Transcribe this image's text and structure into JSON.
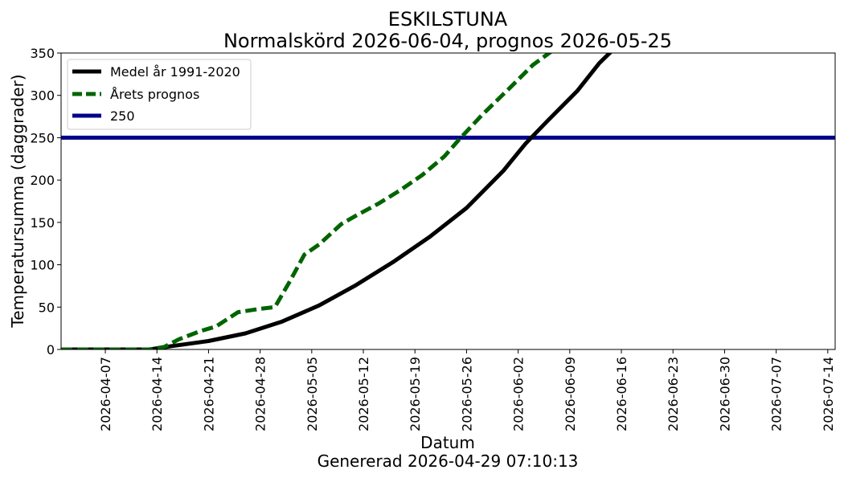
{
  "chart_data": {
    "type": "line",
    "title": "ESKILSTUNA",
    "subtitle": "Normalskörd 2026-06-04, prognos 2026-05-25",
    "xlabel": "Datum",
    "ylabel": "Temperatursumma (daggrader)",
    "footer": "Genererad 2026-04-29 07:10:13",
    "xlim": [
      "2026-04-01",
      "2026-07-15"
    ],
    "ylim": [
      0,
      350
    ],
    "x_ticks": [
      "2026-04-07",
      "2026-04-14",
      "2026-04-21",
      "2026-04-28",
      "2026-05-05",
      "2026-05-12",
      "2026-05-19",
      "2026-05-26",
      "2026-06-02",
      "2026-06-09",
      "2026-06-16",
      "2026-06-23",
      "2026-06-30",
      "2026-07-07",
      "2026-07-14"
    ],
    "y_ticks": [
      0,
      50,
      100,
      150,
      200,
      250,
      300,
      350
    ],
    "grid": false,
    "legend_position": "top-left",
    "series": [
      {
        "name": "Medel år 1991-2020",
        "color": "#000000",
        "style": "solid",
        "x": [
          "2026-04-01",
          "2026-04-13",
          "2026-04-16",
          "2026-04-21",
          "2026-04-26",
          "2026-05-01",
          "2026-05-06",
          "2026-05-11",
          "2026-05-16",
          "2026-05-21",
          "2026-05-26",
          "2026-05-31",
          "2026-06-03",
          "2026-06-06",
          "2026-06-10",
          "2026-06-13",
          "2026-06-15"
        ],
        "y": [
          0,
          0,
          4,
          10,
          19,
          33,
          52,
          76,
          103,
          133,
          167,
          211,
          243,
          270,
          305,
          338,
          355
        ]
      },
      {
        "name": "Årets prognos",
        "color": "#006400",
        "style": "dashed",
        "x": [
          "2026-04-01",
          "2026-04-13",
          "2026-04-15",
          "2026-04-17",
          "2026-04-20",
          "2026-04-22",
          "2026-04-25",
          "2026-04-28",
          "2026-04-30",
          "2026-05-02",
          "2026-05-04",
          "2026-05-06",
          "2026-05-09",
          "2026-05-11",
          "2026-05-14",
          "2026-05-17",
          "2026-05-20",
          "2026-05-23",
          "2026-05-25",
          "2026-05-28",
          "2026-06-01",
          "2026-06-04",
          "2026-06-07"
        ],
        "y": [
          0,
          0,
          3,
          12,
          22,
          27,
          44,
          48,
          50,
          80,
          112,
          124,
          148,
          158,
          172,
          188,
          206,
          228,
          248,
          276,
          310,
          336,
          355
        ]
      },
      {
        "name": "250",
        "color": "#00008b",
        "style": "solid",
        "x": [
          "2026-04-01",
          "2026-07-15"
        ],
        "y": [
          250,
          250
        ]
      }
    ]
  }
}
